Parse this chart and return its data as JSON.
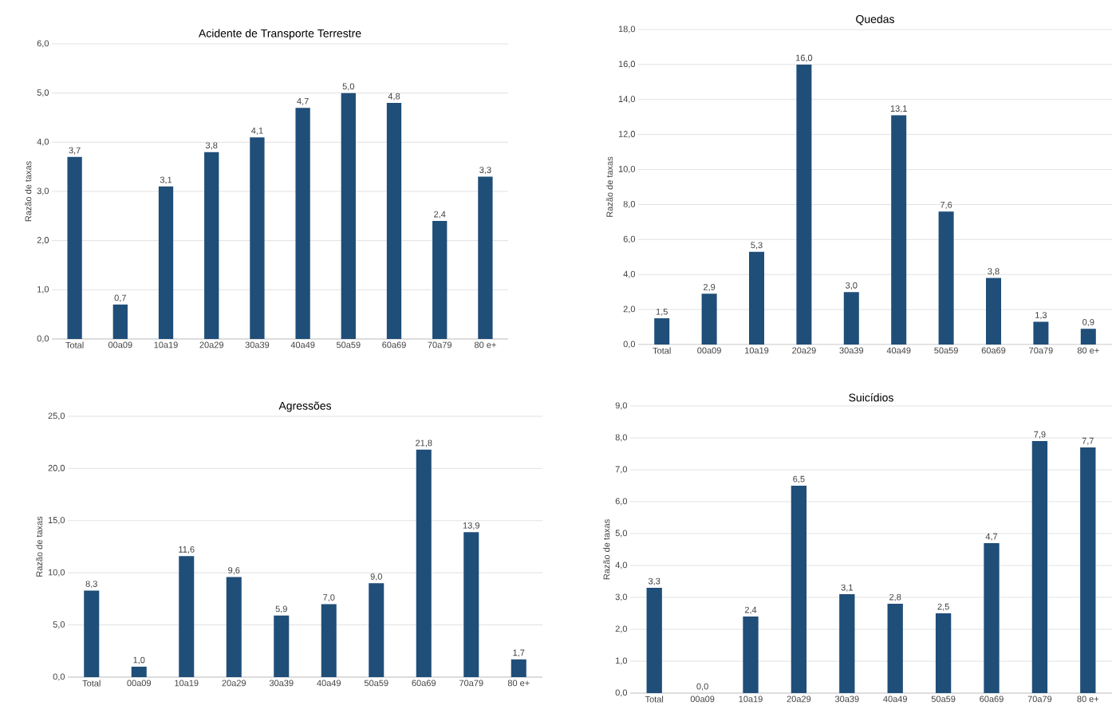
{
  "chart_data": [
    {
      "type": "bar",
      "title": "Acidente de Transporte Terrestre",
      "ylabel": "Razão de taxas",
      "categories": [
        "Total",
        "00a09",
        "10a19",
        "20a29",
        "30a39",
        "40a49",
        "50a59",
        "60a69",
        "70a79",
        "80 e+"
      ],
      "values": [
        3.7,
        0.7,
        3.1,
        3.8,
        4.1,
        4.7,
        5.0,
        4.8,
        2.4,
        3.3
      ],
      "value_labels": [
        "3,7",
        "0,7",
        "3,1",
        "3,8",
        "4,1",
        "4,7",
        "5,0",
        "4,8",
        "2,4",
        "3,3"
      ],
      "color": "#1f4e79",
      "ylim": [
        0,
        6
      ],
      "yticks": [
        {
          "value": 0,
          "label": "0,0"
        },
        {
          "value": 1,
          "label": "1,0"
        },
        {
          "value": 2,
          "label": "2,0"
        },
        {
          "value": 3,
          "label": "3,0"
        },
        {
          "value": 4,
          "label": "4,0"
        },
        {
          "value": 5,
          "label": "5,0"
        },
        {
          "value": 6,
          "label": "6,0"
        }
      ],
      "grid": "y"
    },
    {
      "type": "bar",
      "title": "Quedas",
      "ylabel": "Razão de taxas",
      "categories": [
        "Total",
        "00a09",
        "10a19",
        "20a29",
        "30a39",
        "40a49",
        "50a59",
        "60a69",
        "70a79",
        "80 e+"
      ],
      "values": [
        1.5,
        2.9,
        5.3,
        16.0,
        3.0,
        13.1,
        7.6,
        3.8,
        1.3,
        0.9
      ],
      "value_labels": [
        "1,5",
        "2,9",
        "5,3",
        "16,0",
        "3,0",
        "13,1",
        "7,6",
        "3,8",
        "1,3",
        "0,9"
      ],
      "color": "#1f4e79",
      "ylim": [
        0,
        18
      ],
      "yticks": [
        {
          "value": 0,
          "label": "0,0"
        },
        {
          "value": 2,
          "label": "2,0"
        },
        {
          "value": 4,
          "label": "4,0"
        },
        {
          "value": 6,
          "label": "6,0"
        },
        {
          "value": 8,
          "label": "8,0"
        },
        {
          "value": 10,
          "label": "10,0"
        },
        {
          "value": 12,
          "label": "12,0"
        },
        {
          "value": 14,
          "label": "14,0"
        },
        {
          "value": 16,
          "label": "16,0"
        },
        {
          "value": 18,
          "label": "18,0"
        }
      ],
      "grid": "y"
    },
    {
      "type": "bar",
      "title": "Agressões",
      "ylabel": "Razão de taxas",
      "categories": [
        "Total",
        "00a09",
        "10a19",
        "20a29",
        "30a39",
        "40a49",
        "50a59",
        "60a69",
        "70a79",
        "80 e+"
      ],
      "values": [
        8.3,
        1.0,
        11.6,
        9.6,
        5.9,
        7.0,
        9.0,
        21.8,
        13.9,
        1.7
      ],
      "value_labels": [
        "8,3",
        "1,0",
        "11,6",
        "9,6",
        "5,9",
        "7,0",
        "9,0",
        "21,8",
        "13,9",
        "1,7"
      ],
      "color": "#1f4e79",
      "ylim": [
        0,
        25
      ],
      "yticks": [
        {
          "value": 0,
          "label": "0,0"
        },
        {
          "value": 5,
          "label": "5,0"
        },
        {
          "value": 10,
          "label": "10,0"
        },
        {
          "value": 15,
          "label": "15,0"
        },
        {
          "value": 20,
          "label": "20,0"
        },
        {
          "value": 25,
          "label": "25,0"
        }
      ],
      "grid": "y"
    },
    {
      "type": "bar",
      "title": "Suicídios",
      "ylabel": "Razão de taxas",
      "categories": [
        "Total",
        "00a09",
        "10a19",
        "20a29",
        "30a39",
        "40a49",
        "50a59",
        "60a69",
        "70a79",
        "80 e+"
      ],
      "values": [
        3.3,
        0.0,
        2.4,
        6.5,
        3.1,
        2.8,
        2.5,
        4.7,
        7.9,
        7.7
      ],
      "value_labels": [
        "3,3",
        "0,0",
        "2,4",
        "6,5",
        "3,1",
        "2,8",
        "2,5",
        "4,7",
        "7,9",
        "7,7"
      ],
      "color": "#1f4e79",
      "ylim": [
        0,
        9
      ],
      "yticks": [
        {
          "value": 0,
          "label": "0,0"
        },
        {
          "value": 1,
          "label": "1,0"
        },
        {
          "value": 2,
          "label": "2,0"
        },
        {
          "value": 3,
          "label": "3,0"
        },
        {
          "value": 4,
          "label": "4,0"
        },
        {
          "value": 5,
          "label": "5,0"
        },
        {
          "value": 6,
          "label": "6,0"
        },
        {
          "value": 7,
          "label": "7,0"
        },
        {
          "value": 8,
          "label": "8,0"
        },
        {
          "value": 9,
          "label": "9,0"
        }
      ],
      "grid": "y"
    }
  ]
}
